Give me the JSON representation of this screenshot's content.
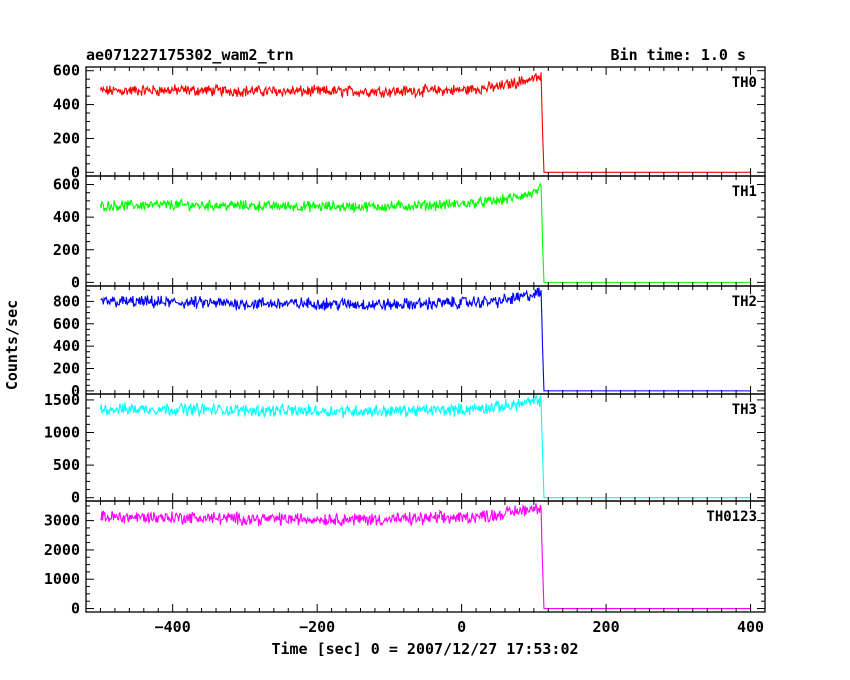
{
  "header": {
    "title": "ae071227175302_wam2_trn",
    "bin_time": "Bin time: 1.0 s"
  },
  "chart_data": {
    "type": "line",
    "xlabel": "Time [sec] 0 = 2007/12/27 17:53:02",
    "ylabel": "Counts/sec",
    "xlim": [
      -520,
      420
    ],
    "x_ticks": [
      -400,
      -200,
      0,
      200,
      400
    ],
    "drop_time": 112,
    "panels": [
      {
        "name": "TH0",
        "color": "#ff0000",
        "ylim": [
          -10,
          610
        ],
        "y_ticks": [
          0,
          200,
          400,
          600
        ],
        "values": [
          {
            "x": -500,
            "y": 480
          },
          {
            "x": -400,
            "y": 485
          },
          {
            "x": -300,
            "y": 480
          },
          {
            "x": -200,
            "y": 478
          },
          {
            "x": -100,
            "y": 478
          },
          {
            "x": 0,
            "y": 485
          },
          {
            "x": 50,
            "y": 505
          },
          {
            "x": 100,
            "y": 555
          },
          {
            "x": 110,
            "y": 560
          },
          {
            "x": 112,
            "y": 250
          },
          {
            "x": 114,
            "y": 0
          },
          {
            "x": 400,
            "y": 0
          }
        ]
      },
      {
        "name": "TH1",
        "color": "#00ff00",
        "ylim": [
          -10,
          640
        ],
        "y_ticks": [
          0,
          200,
          400,
          600
        ],
        "values": [
          {
            "x": -500,
            "y": 470
          },
          {
            "x": -400,
            "y": 475
          },
          {
            "x": -300,
            "y": 470
          },
          {
            "x": -200,
            "y": 465
          },
          {
            "x": -100,
            "y": 465
          },
          {
            "x": 0,
            "y": 480
          },
          {
            "x": 50,
            "y": 500
          },
          {
            "x": 100,
            "y": 545
          },
          {
            "x": 110,
            "y": 575
          },
          {
            "x": 112,
            "y": 250
          },
          {
            "x": 114,
            "y": 0
          },
          {
            "x": 400,
            "y": 0
          }
        ]
      },
      {
        "name": "TH2",
        "color": "#0000ff",
        "ylim": [
          -10,
          920
        ],
        "y_ticks": [
          0,
          200,
          400,
          600,
          800
        ],
        "values": [
          {
            "x": -500,
            "y": 800
          },
          {
            "x": -400,
            "y": 790
          },
          {
            "x": -300,
            "y": 780
          },
          {
            "x": -200,
            "y": 780
          },
          {
            "x": -100,
            "y": 770
          },
          {
            "x": 0,
            "y": 790
          },
          {
            "x": 50,
            "y": 800
          },
          {
            "x": 100,
            "y": 860
          },
          {
            "x": 110,
            "y": 880
          },
          {
            "x": 112,
            "y": 400
          },
          {
            "x": 114,
            "y": 0
          },
          {
            "x": 400,
            "y": 0
          }
        ]
      },
      {
        "name": "TH3",
        "color": "#00ffff",
        "ylim": [
          -20,
          1560
        ],
        "y_ticks": [
          0,
          500,
          1000,
          1500
        ],
        "values": [
          {
            "x": -500,
            "y": 1360
          },
          {
            "x": -400,
            "y": 1360
          },
          {
            "x": -300,
            "y": 1340
          },
          {
            "x": -200,
            "y": 1330
          },
          {
            "x": -100,
            "y": 1330
          },
          {
            "x": 0,
            "y": 1350
          },
          {
            "x": 50,
            "y": 1390
          },
          {
            "x": 100,
            "y": 1470
          },
          {
            "x": 110,
            "y": 1500
          },
          {
            "x": 112,
            "y": 700
          },
          {
            "x": 114,
            "y": 0
          },
          {
            "x": 400,
            "y": 0
          }
        ]
      },
      {
        "name": "TH0123",
        "color": "#ff00ff",
        "ylim": [
          -50,
          3600
        ],
        "y_ticks": [
          0,
          1000,
          2000,
          3000
        ],
        "values": [
          {
            "x": -500,
            "y": 3120
          },
          {
            "x": -400,
            "y": 3110
          },
          {
            "x": -300,
            "y": 3060
          },
          {
            "x": -200,
            "y": 3050
          },
          {
            "x": -100,
            "y": 3040
          },
          {
            "x": 0,
            "y": 3100
          },
          {
            "x": 50,
            "y": 3200
          },
          {
            "x": 100,
            "y": 3430
          },
          {
            "x": 110,
            "y": 3480
          },
          {
            "x": 112,
            "y": 1500
          },
          {
            "x": 114,
            "y": 0
          },
          {
            "x": 400,
            "y": 0
          }
        ]
      }
    ]
  }
}
